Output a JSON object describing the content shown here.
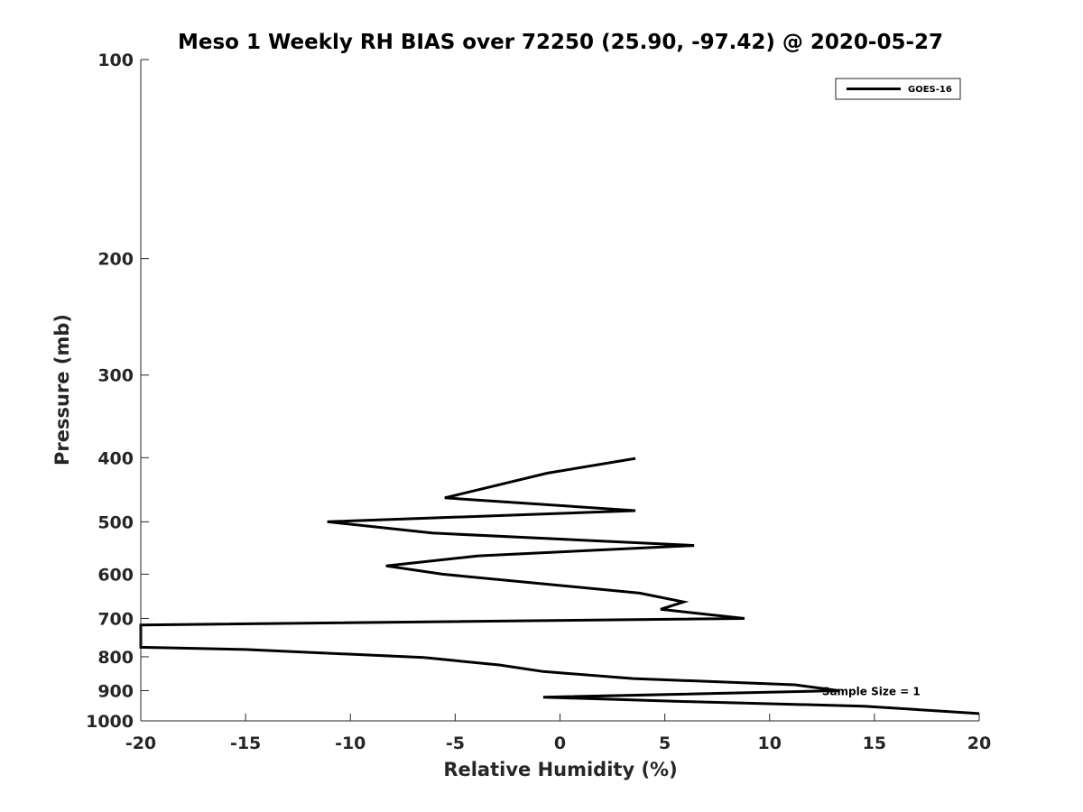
{
  "chart_data": {
    "type": "line",
    "title": "Meso 1 Weekly RH BIAS over 72250 (25.90, -97.42) @ 2020-05-27",
    "xlabel": "Relative Humidity (%)",
    "ylabel": "Pressure (mb)",
    "xlim": [
      -20,
      20
    ],
    "ylim": [
      100,
      1000
    ],
    "y_scale": "log",
    "y_reversed": true,
    "grid": false,
    "legend_position": "top-right",
    "x_ticks": [
      -20,
      -15,
      -10,
      -5,
      0,
      5,
      10,
      15,
      20
    ],
    "y_ticks": [
      100,
      200,
      300,
      400,
      500,
      600,
      700,
      800,
      900,
      1000
    ],
    "series": [
      {
        "name": "GOES-16",
        "color": "#000000",
        "points": [
          {
            "x": 20.0,
            "y": 975
          },
          {
            "x": 14.5,
            "y": 950
          },
          {
            "x": 6.0,
            "y": 935
          },
          {
            "x": -0.8,
            "y": 921
          },
          {
            "x": 13.3,
            "y": 900
          },
          {
            "x": 11.2,
            "y": 882
          },
          {
            "x": 3.5,
            "y": 863
          },
          {
            "x": -0.8,
            "y": 842
          },
          {
            "x": -2.9,
            "y": 823
          },
          {
            "x": -6.5,
            "y": 802
          },
          {
            "x": -15.0,
            "y": 780
          },
          {
            "x": -20.0,
            "y": 774
          },
          {
            "x": -20.0,
            "y": 716
          },
          {
            "x": 8.8,
            "y": 700
          },
          {
            "x": 4.8,
            "y": 678
          },
          {
            "x": 5.9,
            "y": 661
          },
          {
            "x": 3.8,
            "y": 641
          },
          {
            "x": -5.6,
            "y": 600
          },
          {
            "x": -8.3,
            "y": 583
          },
          {
            "x": -3.9,
            "y": 563
          },
          {
            "x": 6.4,
            "y": 543
          },
          {
            "x": -6.1,
            "y": 520
          },
          {
            "x": -11.1,
            "y": 500
          },
          {
            "x": 3.6,
            "y": 481
          },
          {
            "x": -5.5,
            "y": 460
          },
          {
            "x": -0.6,
            "y": 422
          },
          {
            "x": 3.6,
            "y": 401
          }
        ]
      }
    ],
    "annotations": [
      {
        "text": "Sample Size = 1",
        "x": 12.5,
        "y": 900
      }
    ]
  }
}
